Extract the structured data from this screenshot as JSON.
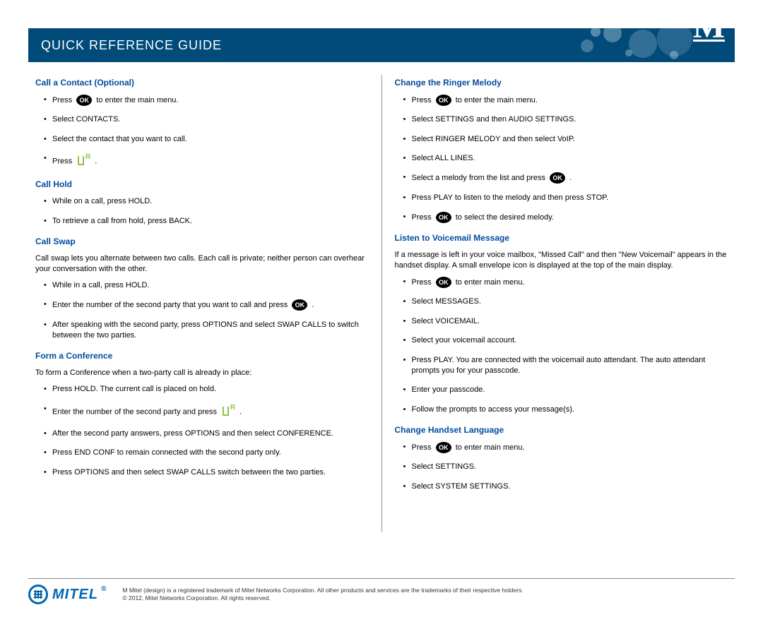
{
  "header": {
    "title": "QUICK REFERENCE GUIDE",
    "logo_letter": "M",
    "background_color": "#004b7a"
  },
  "left_column": {
    "sections": [
      {
        "heading": "Call a Contact (Optional)",
        "steps": [
          {
            "pre": "Press",
            "icon": "ok",
            "post": "to enter the main menu."
          },
          {
            "text": "Select CONTACTS."
          },
          {
            "text": "Select the contact that you want to call."
          },
          {
            "pre": "Press",
            "icon": "green-call",
            "post": "."
          }
        ]
      },
      {
        "heading": "Call Hold",
        "steps": [
          {
            "text": "While on a call, press HOLD."
          },
          {
            "text": "To retrieve a call from hold, press BACK."
          }
        ]
      },
      {
        "heading": "Call Swap",
        "intro": "Call swap lets you alternate between two calls. Each call is private; neither person can overhear your conversation with the other.",
        "steps": [
          {
            "text": "While in a call, press HOLD."
          },
          {
            "pre": "Enter the number of the second party that you want to call and press",
            "icon": "ok",
            "post": "."
          },
          {
            "text": "After speaking with the second party, press OPTIONS and select SWAP CALLS to switch between the two parties."
          }
        ]
      },
      {
        "heading": "Form a Conference",
        "intro": "To form a Conference when a two-party call is already in place:",
        "steps": [
          {
            "text": "Press HOLD. The current call is placed on hold."
          },
          {
            "pre": "Enter the number of the second party and press",
            "icon": "green-call",
            "post": "."
          },
          {
            "text": "After the second party answers, press OPTIONS and then select CONFERENCE."
          },
          {
            "text": "Press END CONF to remain connected with the second party only."
          },
          {
            "text": "Press OPTIONS and then select SWAP CALLS switch between the two parties."
          }
        ]
      }
    ]
  },
  "right_column": {
    "sections": [
      {
        "heading": "Change the Ringer Melody",
        "steps": [
          {
            "pre": "Press",
            "icon": "ok",
            "post": "to enter the main menu."
          },
          {
            "text": "Select SETTINGS and then AUDIO SETTINGS."
          },
          {
            "text": "Select RINGER MELODY and then select VoIP."
          },
          {
            "text": "Select ALL LINES."
          },
          {
            "pre": "Select a melody from the list and press",
            "icon": "ok",
            "post": "."
          },
          {
            "text": "Press PLAY to listen to the melody and then press STOP."
          },
          {
            "pre": "Press",
            "icon": "ok",
            "post": "to select the desired melody."
          }
        ]
      },
      {
        "heading": "Listen to Voicemail Message",
        "intro": "If a message is left in your voice mailbox, \"Missed Call\" and then \"New Voicemail\" appears in the handset display. A small envelope icon is displayed at the top of the main display.",
        "steps": [
          {
            "pre": "Press",
            "icon": "ok",
            "post": "to enter main menu."
          },
          {
            "text": "Select MESSAGES."
          },
          {
            "text": "Select VOICEMAIL."
          },
          {
            "text": "Select your voicemail account."
          },
          {
            "text": "Press PLAY. You are connected with the voicemail auto attendant. The auto attendant prompts you for your passcode."
          },
          {
            "text": "Enter your passcode."
          },
          {
            "text": "Follow the prompts to access your message(s)."
          }
        ]
      },
      {
        "heading": "Change Handset Language",
        "steps": [
          {
            "pre": "Press",
            "icon": "ok",
            "post": "to enter main menu."
          },
          {
            "text": "Select SETTINGS."
          },
          {
            "text": "Select SYSTEM SETTINGS."
          }
        ]
      }
    ]
  },
  "footer": {
    "logo_text": "MITEL",
    "trademark_line": "M Mitel (design) is a registered trademark of Mitel Networks Corporation. All other products and services are the trademarks of their respective holders.",
    "copyright_line": "© 2012, Mitel Networks Corporation. All rights reserved."
  },
  "colors": {
    "heading_color": "#004b9e",
    "header_bg": "#004b7a",
    "logo_blue": "#0066b3",
    "green_icon": "#8bc34a"
  },
  "icons": {
    "ok_label": "OK"
  }
}
